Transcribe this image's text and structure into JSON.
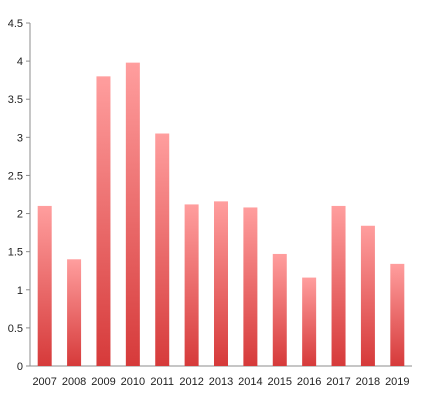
{
  "chart_data": {
    "type": "bar",
    "title": "",
    "xlabel": "",
    "ylabel": "",
    "categories": [
      "2007",
      "2008",
      "2009",
      "2010",
      "2011",
      "2012",
      "2013",
      "2014",
      "2015",
      "2016",
      "2017",
      "2018",
      "2019"
    ],
    "series": [
      {
        "values": [
          2.1,
          1.4,
          3.8,
          3.98,
          3.05,
          2.12,
          2.16,
          2.08,
          1.47,
          1.16,
          2.1,
          1.84,
          1.34
        ],
        "color_top": "#ff9e9e",
        "color_bottom": "#d63a3a"
      }
    ],
    "ylim": [
      0,
      4.5
    ],
    "yticks": [
      "0",
      "0.5",
      "1",
      "1.5",
      "2",
      "2.5",
      "3",
      "3.5",
      "4",
      "4.5"
    ],
    "grid": false,
    "legend": "none"
  }
}
